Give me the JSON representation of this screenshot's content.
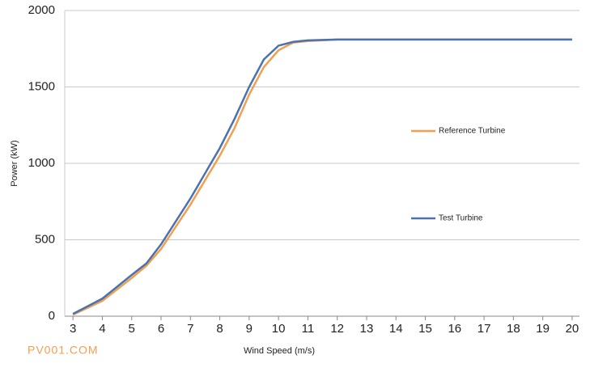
{
  "chart_data": {
    "type": "line",
    "x_label": "Wind Speed (m/s)",
    "y_label": "Power (kW)",
    "x": [
      3,
      4,
      5,
      5.5,
      6,
      7,
      8,
      8.5,
      9,
      9.5,
      10,
      10.5,
      11,
      12,
      13,
      14,
      15,
      16,
      17,
      18,
      19,
      20
    ],
    "series": [
      {
        "name": "Reference Turbine",
        "color": "#f0a050",
        "values": [
          10,
          100,
          250,
          330,
          440,
          730,
          1050,
          1230,
          1450,
          1630,
          1740,
          1790,
          1800,
          1810,
          1810,
          1810,
          1810,
          1810,
          1810,
          1810,
          1810,
          1810
        ]
      },
      {
        "name": "Test Turbine",
        "color": "#4a72b0",
        "values": [
          15,
          115,
          270,
          345,
          470,
          770,
          1100,
          1290,
          1500,
          1680,
          1770,
          1795,
          1805,
          1810,
          1810,
          1810,
          1810,
          1810,
          1810,
          1810,
          1810,
          1810
        ]
      }
    ],
    "xlim": [
      2.72,
      20.25
    ],
    "xticks": [
      3,
      4,
      5,
      6,
      7,
      8,
      9,
      10,
      11,
      12,
      13,
      14,
      15,
      16,
      17,
      18,
      19,
      20
    ],
    "ylim": [
      0,
      2000
    ],
    "yticks": [
      0,
      500,
      1000,
      1500,
      2000
    ],
    "grid": true,
    "legend": "right",
    "watermark": "PV001.COM"
  }
}
